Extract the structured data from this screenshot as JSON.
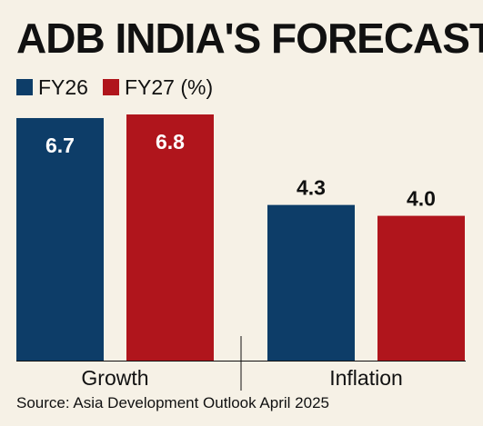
{
  "chart_data": {
    "type": "bar",
    "title": "ADB INDIA'S FORECAST",
    "categories": [
      "Growth",
      "Inflation"
    ],
    "series": [
      {
        "name": "FY26",
        "values": [
          6.7,
          4.3
        ],
        "color": "#0d3d68"
      },
      {
        "name": "FY27 (%)",
        "values": [
          6.8,
          4.0
        ],
        "color": "#b0151c"
      }
    ],
    "ylim": [
      0,
      6.8
    ],
    "grid": false,
    "legend_placement": "top-left",
    "data_labels": true,
    "source": "Source: Asia Development Outlook April 2025"
  },
  "colors": {
    "background": "#f6f1e6",
    "text": "#111111",
    "label_on_bar": "#ffffff"
  }
}
